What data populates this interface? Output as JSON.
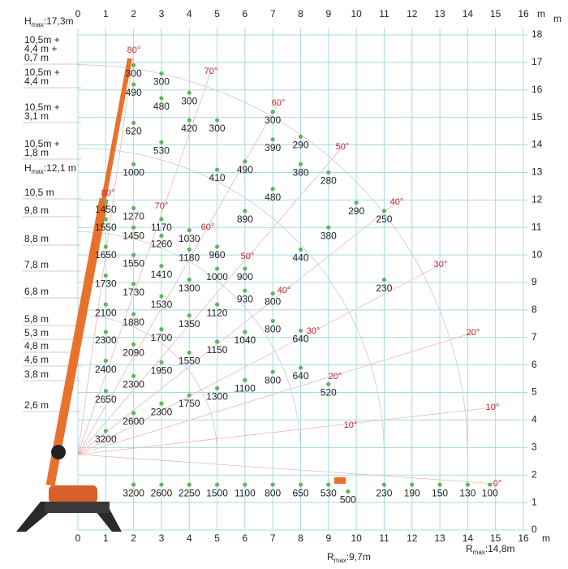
{
  "chart_data": {
    "type": "load-chart",
    "unit": "m",
    "xlim": [
      0,
      16
    ],
    "ylim": [
      0,
      18
    ],
    "xticks": [
      0,
      1,
      2,
      3,
      4,
      5,
      6,
      7,
      8,
      9,
      10,
      11,
      12,
      13,
      14,
      15,
      16
    ],
    "yticks": [
      0,
      1,
      2,
      3,
      4,
      5,
      6,
      7,
      8,
      9,
      10,
      11,
      12,
      13,
      14,
      15,
      16,
      17,
      18
    ],
    "grid": true,
    "point_color": "#5cb85c",
    "points": [
      {
        "x": 2,
        "y": 16.9,
        "load": 300
      },
      {
        "x": 3,
        "y": 16.6,
        "load": 300
      },
      {
        "x": 4,
        "y": 15.9,
        "load": 300
      },
      {
        "x": 5,
        "y": 14.9,
        "load": 300
      },
      {
        "x": 7,
        "y": 15.2,
        "load": 300
      },
      {
        "x": 8,
        "y": 14.3,
        "load": 290
      },
      {
        "x": 9,
        "y": 13.0,
        "load": 280
      },
      {
        "x": 10,
        "y": 11.9,
        "load": 290
      },
      {
        "x": 11,
        "y": 11.6,
        "load": 250
      },
      {
        "x": 2,
        "y": 16.2,
        "load": 490
      },
      {
        "x": 3,
        "y": 15.7,
        "load": 480
      },
      {
        "x": 4,
        "y": 14.9,
        "load": 420
      },
      {
        "x": 2,
        "y": 14.8,
        "load": 620
      },
      {
        "x": 3,
        "y": 14.1,
        "load": 530
      },
      {
        "x": 7,
        "y": 14.2,
        "load": 390
      },
      {
        "x": 6,
        "y": 13.4,
        "load": 490
      },
      {
        "x": 5,
        "y": 13.1,
        "load": 410
      },
      {
        "x": 2,
        "y": 13.3,
        "load": 1000
      },
      {
        "x": 8,
        "y": 13.3,
        "load": 380
      },
      {
        "x": 7,
        "y": 12.4,
        "load": 480
      },
      {
        "x": 6,
        "y": 11.6,
        "load": 890
      },
      {
        "x": 9,
        "y": 11.0,
        "load": 380
      },
      {
        "x": 8,
        "y": 10.2,
        "load": 440
      },
      {
        "x": 11,
        "y": 9.1,
        "load": 230
      },
      {
        "x": 1,
        "y": 11.95,
        "load": 1450
      },
      {
        "x": 2,
        "y": 11.7,
        "load": 1270
      },
      {
        "x": 3,
        "y": 11.3,
        "load": 1170
      },
      {
        "x": 1,
        "y": 11.3,
        "load": 1550
      },
      {
        "x": 2,
        "y": 11.0,
        "load": 1450
      },
      {
        "x": 4,
        "y": 10.9,
        "load": 1030
      },
      {
        "x": 3,
        "y": 10.7,
        "load": 1260
      },
      {
        "x": 5,
        "y": 10.3,
        "load": 960
      },
      {
        "x": 4,
        "y": 10.2,
        "load": 1180
      },
      {
        "x": 1,
        "y": 10.3,
        "load": 1650
      },
      {
        "x": 2,
        "y": 10.0,
        "load": 1550
      },
      {
        "x": 5,
        "y": 9.5,
        "load": 1000
      },
      {
        "x": 6,
        "y": 9.5,
        "load": 900
      },
      {
        "x": 3,
        "y": 9.6,
        "load": 1410
      },
      {
        "x": 1,
        "y": 9.25,
        "load": 1730
      },
      {
        "x": 2,
        "y": 8.95,
        "load": 1730
      },
      {
        "x": 4,
        "y": 9.1,
        "load": 1300
      },
      {
        "x": 6,
        "y": 8.7,
        "load": 930
      },
      {
        "x": 7,
        "y": 8.6,
        "load": 800
      },
      {
        "x": 3,
        "y": 8.5,
        "load": 1530
      },
      {
        "x": 1,
        "y": 8.2,
        "load": 2100
      },
      {
        "x": 5,
        "y": 8.2,
        "load": 1120
      },
      {
        "x": 2,
        "y": 7.85,
        "load": 1880
      },
      {
        "x": 4,
        "y": 7.8,
        "load": 1350
      },
      {
        "x": 7,
        "y": 7.6,
        "load": 800
      },
      {
        "x": 8,
        "y": 7.25,
        "load": 640
      },
      {
        "x": 3,
        "y": 7.3,
        "load": 1700
      },
      {
        "x": 6,
        "y": 7.2,
        "load": 1040
      },
      {
        "x": 1,
        "y": 7.2,
        "load": 2300
      },
      {
        "x": 5,
        "y": 6.85,
        "load": 1150
      },
      {
        "x": 2,
        "y": 6.75,
        "load": 2090
      },
      {
        "x": 4,
        "y": 6.45,
        "load": 1550
      },
      {
        "x": 1,
        "y": 6.15,
        "load": 2400
      },
      {
        "x": 3,
        "y": 6.1,
        "load": 1950
      },
      {
        "x": 8,
        "y": 5.9,
        "load": 640
      },
      {
        "x": 7,
        "y": 5.75,
        "load": 800
      },
      {
        "x": 2,
        "y": 5.6,
        "load": 2300
      },
      {
        "x": 6,
        "y": 5.45,
        "load": 1100
      },
      {
        "x": 9,
        "y": 5.3,
        "load": 520
      },
      {
        "x": 5,
        "y": 5.15,
        "load": 1300
      },
      {
        "x": 1,
        "y": 5.05,
        "load": 2650
      },
      {
        "x": 4,
        "y": 4.9,
        "load": 1750
      },
      {
        "x": 3,
        "y": 4.6,
        "load": 2300
      },
      {
        "x": 2,
        "y": 4.25,
        "load": 2600
      },
      {
        "x": 1,
        "y": 3.6,
        "load": 3200
      },
      {
        "x": 2,
        "y": 1.65,
        "load": 3200
      },
      {
        "x": 3,
        "y": 1.65,
        "load": 2600
      },
      {
        "x": 4,
        "y": 1.65,
        "load": 2250
      },
      {
        "x": 5,
        "y": 1.65,
        "load": 1500
      },
      {
        "x": 6,
        "y": 1.65,
        "load": 1100
      },
      {
        "x": 7,
        "y": 1.65,
        "load": 800
      },
      {
        "x": 8,
        "y": 1.65,
        "load": 650
      },
      {
        "x": 9,
        "y": 1.65,
        "load": 530
      },
      {
        "x": 9.7,
        "y": 1.4,
        "load": 500
      },
      {
        "x": 11,
        "y": 1.65,
        "load": 230
      },
      {
        "x": 12,
        "y": 1.65,
        "load": 190
      },
      {
        "x": 13,
        "y": 1.65,
        "load": 150
      },
      {
        "x": 14,
        "y": 1.65,
        "load": 130
      },
      {
        "x": 14.8,
        "y": 1.65,
        "load": 100
      }
    ],
    "angles": [
      "80°",
      "70°",
      "60°",
      "50°",
      "40°",
      "30°",
      "20°",
      "10°",
      "0°",
      "80°",
      "70°",
      "60°",
      "50°",
      "40°",
      "30°",
      "20°",
      "10°"
    ],
    "boom_labels": [
      [
        "10,5m +",
        "4,4 m +",
        "0,7 m"
      ],
      [
        "10,5m +",
        "4,4 m"
      ],
      [
        "10,5m +",
        "3,1 m"
      ],
      [
        "10,5m +",
        "1,8 m"
      ],
      [
        "10,5 m"
      ],
      [
        "9,8 m"
      ],
      [
        "8,8 m"
      ],
      [
        "7,8 m"
      ],
      [
        "6,8 m"
      ],
      [
        "5,8 m"
      ],
      [
        "5,3 m"
      ],
      [
        "4,8 m"
      ],
      [
        "4,6 m"
      ],
      [
        "3,8 m"
      ],
      [
        "2,6 m"
      ]
    ],
    "limits": [
      {
        "symbol": "H",
        "sub": "max",
        "text": ":17,3m"
      },
      {
        "symbol": "H",
        "sub": "max",
        "text": ":12,1 m"
      },
      {
        "symbol": "R",
        "sub": "max",
        "text": ":9,7m"
      },
      {
        "symbol": "R",
        "sub": "max",
        "text": ":14,8m"
      }
    ]
  }
}
